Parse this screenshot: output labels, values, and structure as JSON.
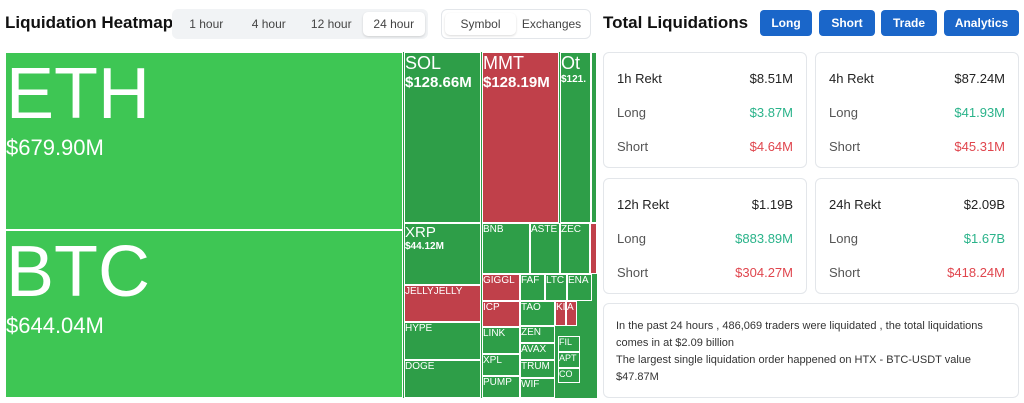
{
  "header": {
    "title": "Liquidation Heatmap",
    "time_tabs": [
      "1 hour",
      "4 hour",
      "12 hour",
      "24 hour"
    ],
    "view_tabs": [
      "Symbol",
      "Exchanges"
    ]
  },
  "heatmap": {
    "tiles": [
      {
        "label": "ETH",
        "value": "$679.90M"
      },
      {
        "label": "BTC",
        "value": "$644.04M"
      },
      {
        "label": "SOL",
        "value": "$128.66M"
      },
      {
        "label": "MMT",
        "value": "$128.19M"
      },
      {
        "label": "Ot",
        "value": "$121."
      },
      {
        "label": "XRP",
        "value": "$44.12M"
      },
      {
        "label": "JELLYJELLY"
      },
      {
        "label": "HYPE"
      },
      {
        "label": "DOGE"
      },
      {
        "label": "BNB"
      },
      {
        "label": "ASTE"
      },
      {
        "label": "ZEC"
      },
      {
        "label": "GIGGL"
      },
      {
        "label": "FAF"
      },
      {
        "label": "LTC"
      },
      {
        "label": "ENA"
      },
      {
        "label": "ICP"
      },
      {
        "label": "TAO"
      },
      {
        "label": "KI"
      },
      {
        "label": "A"
      },
      {
        "label": "LINK"
      },
      {
        "label": "ZEN"
      },
      {
        "label": "AVAX"
      },
      {
        "label": "XPL"
      },
      {
        "label": "TRUM"
      },
      {
        "label": "PUMP"
      },
      {
        "label": "WIF"
      },
      {
        "label": "FIL"
      },
      {
        "label": "APT"
      },
      {
        "label": "CO"
      }
    ]
  },
  "summary": {
    "title": "Total Liquidations",
    "buttons": [
      "Long",
      "Short",
      "Trade",
      "Analytics"
    ],
    "cards": [
      {
        "rows": [
          {
            "label": "1h Rekt",
            "value": "$8.51M"
          },
          {
            "label": "Long",
            "value": "$3.87M"
          },
          {
            "label": "Short",
            "value": "$4.64M"
          }
        ]
      },
      {
        "rows": [
          {
            "label": "4h Rekt",
            "value": "$87.24M"
          },
          {
            "label": "Long",
            "value": "$41.93M"
          },
          {
            "label": "Short",
            "value": "$45.31M"
          }
        ]
      },
      {
        "rows": [
          {
            "label": "12h Rekt",
            "value": "$1.19B"
          },
          {
            "label": "Long",
            "value": "$883.89M"
          },
          {
            "label": "Short",
            "value": "$304.27M"
          }
        ]
      },
      {
        "rows": [
          {
            "label": "24h Rekt",
            "value": "$2.09B"
          },
          {
            "label": "Long",
            "value": "$1.67B"
          },
          {
            "label": "Short",
            "value": "$418.24M"
          }
        ]
      }
    ],
    "note": [
      "In the past 24 hours , 486,069 traders were liquidated , the total liquidations",
      "comes in at $2.09 billion",
      "The largest single liquidation order happened on HTX - BTC-USDT value",
      "$47.87M"
    ]
  }
}
